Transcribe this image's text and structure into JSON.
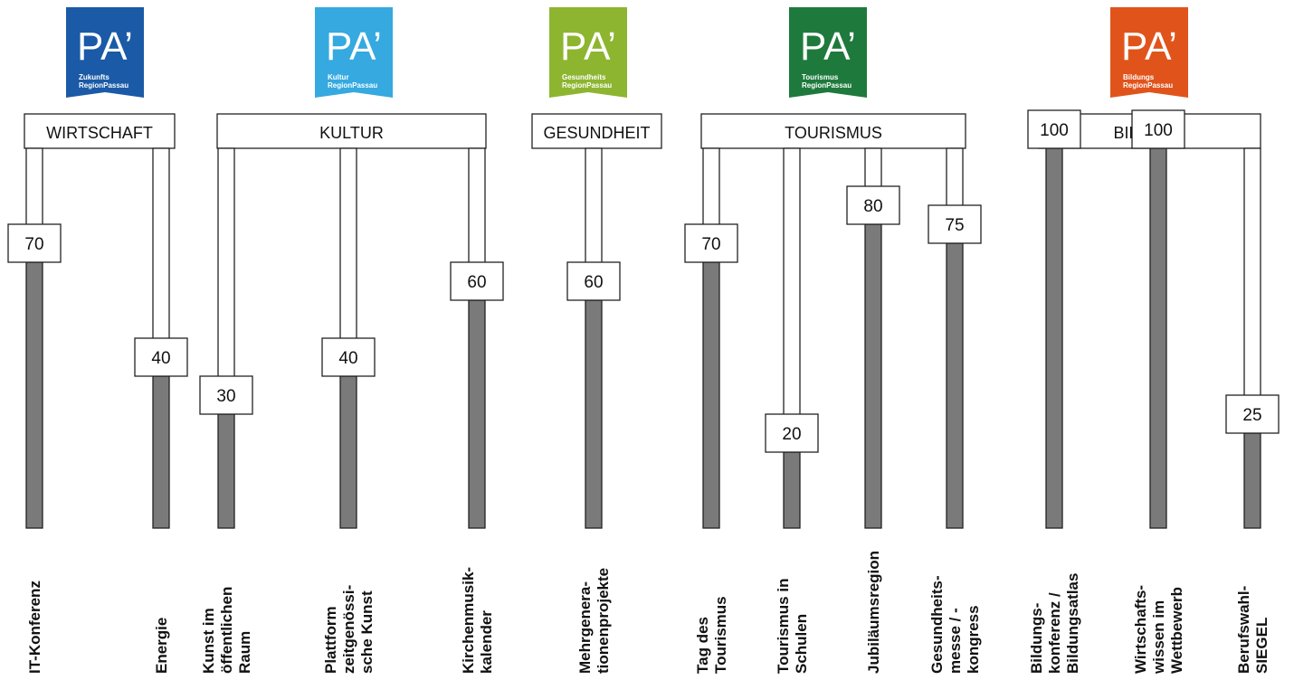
{
  "chart_data": {
    "type": "bar",
    "ylim": [
      0,
      100
    ],
    "groups": [
      {
        "name": "WIRTSCHAFT",
        "logo": {
          "mark": "PA’",
          "line1": "Zukunfts",
          "line2": "RegionPassau",
          "color": "#1a5aa6"
        },
        "items": [
          {
            "label": [
              "IT-Konferenz"
            ],
            "value": 70
          },
          {
            "label": [
              "Energie"
            ],
            "value": 40
          }
        ]
      },
      {
        "name": "KULTUR",
        "logo": {
          "mark": "PA’",
          "line1": "Kultur",
          "line2": "RegionPassau",
          "color": "#35a9e0"
        },
        "items": [
          {
            "label": [
              "Kunst im",
              "öffentlichen",
              "Raum"
            ],
            "value": 30
          },
          {
            "label": [
              "Plattform",
              "zeitgenössi-",
              "sche Kunst"
            ],
            "value": 40
          },
          {
            "label": [
              "Kirchenmusik-",
              "kalender"
            ],
            "value": 60
          }
        ]
      },
      {
        "name": "GESUNDHEIT",
        "logo": {
          "mark": "PA’",
          "line1": "Gesundheits",
          "line2": "RegionPassau",
          "color": "#8db530"
        },
        "items": [
          {
            "label": [
              "Mehrgenera-",
              "tionenprojekte"
            ],
            "value": 60
          }
        ]
      },
      {
        "name": "TOURISMUS",
        "logo": {
          "mark": "PA’",
          "line1": "Tourismus",
          "line2": "RegionPassau",
          "color": "#1e7a3c"
        },
        "items": [
          {
            "label": [
              "Tag des",
              "Tourismus"
            ],
            "value": 70
          },
          {
            "label": [
              "Tourismus in",
              "Schulen"
            ],
            "value": 20
          },
          {
            "label": [
              "Jubiläumsregion"
            ],
            "value": 80
          },
          {
            "label": [
              "Gesundheits-",
              "messe / -",
              "kongress"
            ],
            "value": 75
          }
        ]
      },
      {
        "name": "BILDUNG",
        "logo": {
          "mark": "PA’",
          "line1": "Bildungs",
          "line2": "RegionPassau",
          "color": "#e0541c"
        },
        "items": [
          {
            "label": [
              "Bildungs-",
              "konferenz /",
              "Bildungsatlas"
            ],
            "value": 100
          },
          {
            "label": [
              "Wirtschafts-",
              "wissen im",
              "Wettbewerb"
            ],
            "value": 100
          },
          {
            "label": [
              "Berufswahl-",
              "SIEGEL"
            ],
            "value": 25
          }
        ]
      }
    ],
    "colors": {
      "bar_fill": "#7a7a7a",
      "tube_fill": "#ffffff",
      "stroke": "#222222"
    }
  }
}
